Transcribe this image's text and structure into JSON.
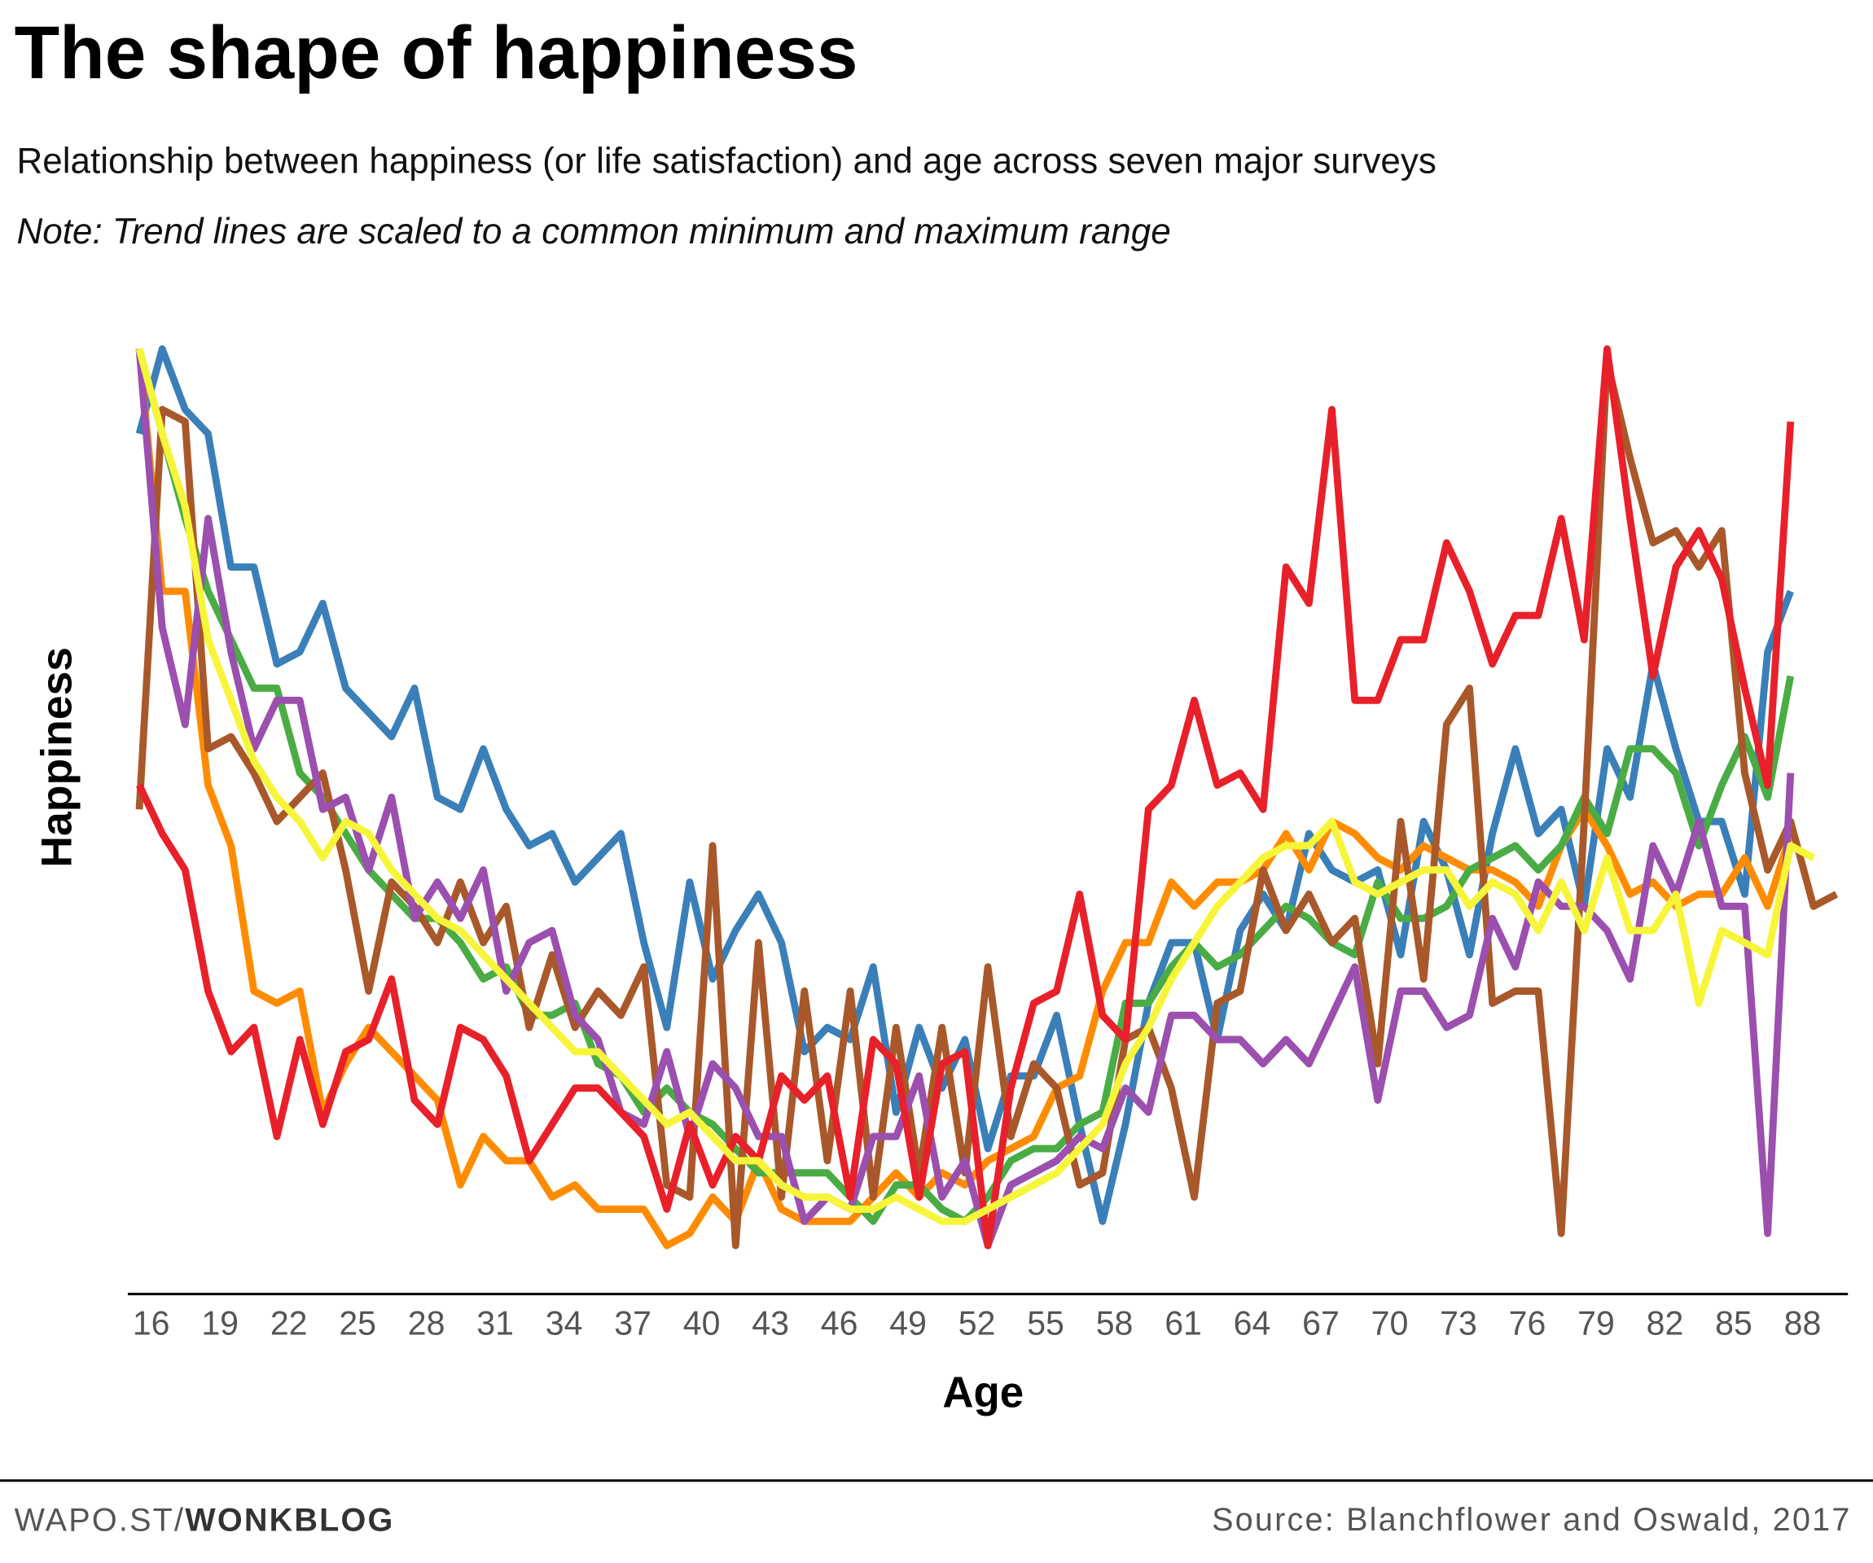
{
  "chart_data": {
    "type": "line",
    "title": "The shape of happiness",
    "subtitle": "Relationship between happiness (or life satisfaction) and age across seven major surveys",
    "note": "Note: Trend lines are scaled to a common minimum and maximum range",
    "y_label": "Happiness",
    "x_label": "Age",
    "credit_prefix": "WAPO.ST/",
    "credit_brand": "WONKBLOG",
    "source": "Source: Blanchflower and Oswald, 2017",
    "x": [
      16,
      17,
      18,
      19,
      20,
      21,
      22,
      23,
      24,
      25,
      26,
      27,
      28,
      29,
      30,
      31,
      32,
      33,
      34,
      35,
      36,
      37,
      38,
      39,
      40,
      41,
      42,
      43,
      44,
      45,
      46,
      47,
      48,
      49,
      50,
      51,
      52,
      53,
      54,
      55,
      56,
      57,
      58,
      59,
      60,
      61,
      62,
      63,
      64,
      65,
      66,
      67,
      68,
      69,
      70,
      71,
      72,
      73,
      74,
      75,
      76,
      77,
      78,
      79,
      80,
      81,
      82,
      83,
      84,
      85,
      86,
      87,
      88,
      89,
      90
    ],
    "xlim": [
      15.5,
      90.5
    ],
    "xticks": [
      16,
      19,
      22,
      25,
      28,
      31,
      34,
      37,
      40,
      43,
      46,
      49,
      52,
      55,
      58,
      61,
      64,
      67,
      70,
      73,
      76,
      79,
      82,
      85,
      88
    ],
    "ylim": [
      0,
      80
    ],
    "series": [
      {
        "color": "#3a7fb8",
        "values": [
          71,
          78,
          73,
          71,
          60,
          60,
          52,
          53,
          57,
          50,
          48,
          46,
          50,
          41,
          40,
          45,
          40,
          37,
          38,
          34,
          36,
          38,
          29,
          22,
          34,
          26,
          30,
          33,
          29,
          20,
          22,
          21,
          27,
          15,
          22,
          17,
          21,
          12,
          18,
          18,
          23,
          14,
          6,
          14,
          24,
          29,
          29,
          21,
          30,
          33,
          30,
          38,
          35,
          34,
          35,
          28,
          39,
          35,
          28,
          38,
          45,
          38,
          40,
          32,
          45,
          41,
          52,
          45,
          39,
          39,
          33,
          53,
          58,
          null,
          null
        ]
      },
      {
        "color": "#ff8c00",
        "values": [
          78,
          58,
          58,
          42,
          37,
          25,
          24,
          25,
          15,
          19,
          22,
          20,
          18,
          16,
          9,
          13,
          11,
          11,
          8,
          9,
          7,
          7,
          7,
          4,
          5,
          8,
          6,
          11,
          7,
          6,
          6,
          6,
          8,
          10,
          8,
          10,
          9,
          11,
          12,
          13,
          17,
          18,
          25,
          29,
          29,
          34,
          32,
          34,
          34,
          35,
          38,
          35,
          39,
          38,
          36,
          35,
          37,
          36,
          35,
          35,
          34,
          32,
          37,
          40,
          37,
          33,
          34,
          32,
          33,
          33,
          36,
          32,
          38,
          null,
          null
        ]
      },
      {
        "color": "#4aac44",
        "values": [
          78,
          71,
          64,
          58,
          54,
          50,
          50,
          43,
          41,
          38,
          35,
          33,
          31,
          31,
          29,
          26,
          27,
          23,
          23,
          24,
          19,
          18,
          15,
          17,
          15,
          14,
          12,
          10,
          10,
          10,
          10,
          8,
          6,
          9,
          9,
          7,
          6,
          8,
          11,
          12,
          12,
          14,
          15,
          24,
          24,
          27,
          29,
          27,
          28,
          30,
          32,
          31,
          29,
          28,
          34,
          31,
          31,
          32,
          35,
          36,
          37,
          35,
          37,
          41,
          38,
          45,
          45,
          43,
          37,
          42,
          46,
          41,
          51,
          null,
          null
        ]
      },
      {
        "color": "#a8582a",
        "values": [
          40,
          73,
          72,
          45,
          46,
          43,
          39,
          41,
          43,
          35,
          25,
          34,
          32,
          29,
          34,
          29,
          32,
          22,
          28,
          22,
          25,
          23,
          27,
          9,
          8,
          37,
          4,
          29,
          8,
          25,
          11,
          25,
          8,
          22,
          10,
          22,
          10,
          27,
          13,
          19,
          17,
          9,
          10,
          21,
          22,
          17,
          8,
          24,
          25,
          35,
          30,
          33,
          29,
          31,
          19,
          39,
          26,
          47,
          50,
          24,
          25,
          25,
          5,
          39,
          77,
          69,
          62,
          63,
          60,
          63,
          43,
          35,
          39,
          32,
          33
        ]
      },
      {
        "color": "#9b4fae",
        "values": [
          78,
          55,
          47,
          64,
          53,
          45,
          49,
          49,
          40,
          41,
          35,
          41,
          31,
          34,
          31,
          35,
          25,
          29,
          30,
          23,
          21,
          15,
          14,
          20,
          13,
          19,
          17,
          13,
          13,
          6,
          8,
          7,
          13,
          13,
          18,
          8,
          11,
          4,
          9,
          10,
          11,
          13,
          12,
          17,
          15,
          23,
          23,
          21,
          21,
          19,
          21,
          19,
          23,
          27,
          16,
          25,
          25,
          22,
          23,
          31,
          27,
          34,
          32,
          32,
          30,
          26,
          37,
          33,
          39,
          32,
          32,
          5,
          43,
          null,
          null
        ]
      },
      {
        "color": "#e8202a",
        "values": [
          42,
          38,
          35,
          25,
          20,
          22,
          13,
          21,
          14,
          20,
          21,
          26,
          16,
          14,
          22,
          21,
          18,
          11,
          14,
          17,
          17,
          15,
          13,
          7,
          14,
          9,
          13,
          11,
          18,
          16,
          18,
          8,
          21,
          19,
          8,
          19,
          20,
          4,
          17,
          24,
          25,
          33,
          23,
          21,
          40,
          42,
          49,
          42,
          43,
          40,
          60,
          57,
          73,
          49,
          49,
          54,
          54,
          62,
          58,
          52,
          56,
          56,
          64,
          54,
          78,
          64,
          51,
          60,
          63,
          59,
          50,
          42,
          72,
          null,
          null
        ]
      },
      {
        "color": "#f7f53a",
        "values": [
          78,
          71,
          65,
          54,
          49,
          44,
          41,
          39,
          36,
          39,
          38,
          35,
          33,
          31,
          30,
          28,
          26,
          24,
          22,
          20,
          20,
          18,
          16,
          14,
          15,
          13,
          11,
          11,
          9,
          8,
          8,
          7,
          7,
          8,
          7,
          6,
          6,
          7,
          8,
          9,
          10,
          12,
          14,
          19,
          22,
          26,
          29,
          32,
          34,
          36,
          37,
          37,
          39,
          34,
          33,
          34,
          35,
          35,
          32,
          34,
          33,
          30,
          34,
          30,
          36,
          30,
          30,
          33,
          24,
          30,
          29,
          28,
          37,
          36,
          null
        ]
      }
    ]
  }
}
